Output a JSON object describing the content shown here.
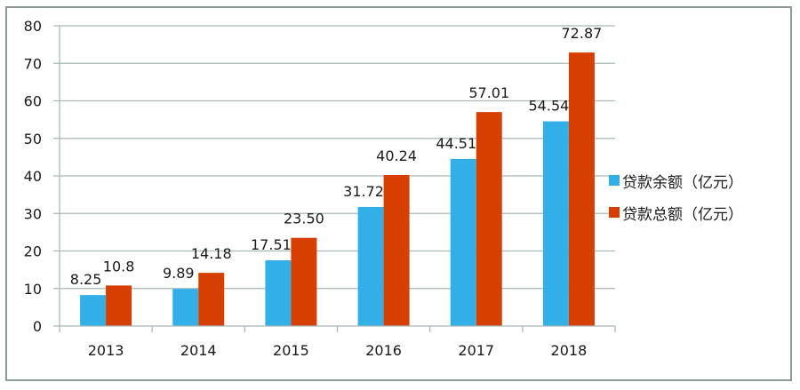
{
  "chart_data": {
    "type": "bar",
    "title": "",
    "xlabel": "",
    "ylabel": "",
    "categories": [
      "2013",
      "2014",
      "2015",
      "2016",
      "2017",
      "2018"
    ],
    "series": [
      {
        "name": "贷款余额（亿元）",
        "color": "#33afe8",
        "values": [
          8.25,
          9.89,
          17.51,
          31.72,
          44.51,
          54.54
        ],
        "labels": [
          "8.25",
          "9.89",
          "17.51",
          "31.72",
          "44.51",
          "54.54"
        ]
      },
      {
        "name": "贷款总额（亿元）",
        "color": "#d63f00",
        "values": [
          10.8,
          14.18,
          23.5,
          40.24,
          57.01,
          72.87
        ],
        "labels": [
          "10.8",
          "14.18",
          "23.50",
          "40.24",
          "57.01",
          "72.87"
        ]
      }
    ],
    "ylim": [
      0,
      80
    ],
    "yticks": [
      "0",
      "10",
      "20",
      "30",
      "40",
      "50",
      "60",
      "70",
      "80"
    ],
    "grid": true,
    "legend_position": "right"
  }
}
